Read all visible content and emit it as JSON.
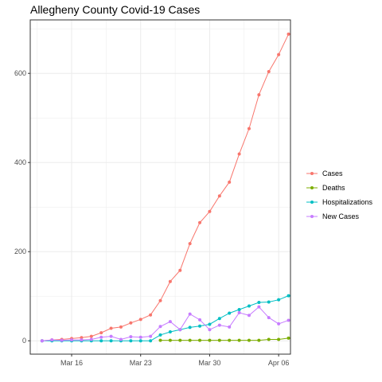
{
  "chart_data": {
    "type": "line",
    "title": "Allegheny County Covid-19 Cases",
    "xlabel": "",
    "ylabel": "",
    "x_start_date": "2020-03-13",
    "x_tick_labels": [
      "Mar 16",
      "Mar 23",
      "Mar 30",
      "Apr 06"
    ],
    "x_ticks_day_offset": [
      3,
      10,
      17,
      24
    ],
    "xlim_day_offset": [
      -1.2,
      25.2
    ],
    "ylim": [
      -30,
      720
    ],
    "y_ticks": [
      0,
      200,
      400,
      600
    ],
    "grid": true,
    "legend_position": "right",
    "x": [
      "2020-03-13",
      "2020-03-14",
      "2020-03-15",
      "2020-03-16",
      "2020-03-17",
      "2020-03-18",
      "2020-03-19",
      "2020-03-20",
      "2020-03-21",
      "2020-03-22",
      "2020-03-23",
      "2020-03-24",
      "2020-03-25",
      "2020-03-26",
      "2020-03-27",
      "2020-03-28",
      "2020-03-29",
      "2020-03-30",
      "2020-03-31",
      "2020-04-01",
      "2020-04-02",
      "2020-04-03",
      "2020-04-04",
      "2020-04-05",
      "2020-04-06",
      "2020-04-07"
    ],
    "series": [
      {
        "name": "Cases",
        "color": "#F8766D",
        "values": [
          0,
          2,
          3,
          5,
          7,
          10,
          18,
          28,
          31,
          40,
          48,
          58,
          90,
          133,
          158,
          218,
          265,
          290,
          325,
          356,
          419,
          476,
          552,
          604,
          642,
          688
        ]
      },
      {
        "name": "Deaths",
        "color": "#7CAE00",
        "values": [
          null,
          null,
          null,
          null,
          null,
          null,
          null,
          null,
          null,
          null,
          null,
          null,
          1,
          1,
          1,
          1,
          1,
          1,
          1,
          1,
          1,
          1,
          1,
          3,
          3,
          6
        ]
      },
      {
        "name": "Hospitalizations",
        "color": "#00BFC4",
        "values": [
          0,
          0,
          0,
          0,
          0,
          0,
          0,
          0,
          0,
          0,
          0,
          0,
          13,
          20,
          25,
          30,
          33,
          37,
          50,
          62,
          70,
          78,
          86,
          87,
          92,
          101
        ]
      },
      {
        "name": "New Cases",
        "color": "#C77CFF",
        "values": [
          0,
          2,
          1,
          2,
          2,
          3,
          8,
          10,
          3,
          9,
          8,
          10,
          32,
          43,
          25,
          60,
          47,
          25,
          35,
          31,
          63,
          57,
          76,
          52,
          38,
          46
        ]
      }
    ]
  }
}
